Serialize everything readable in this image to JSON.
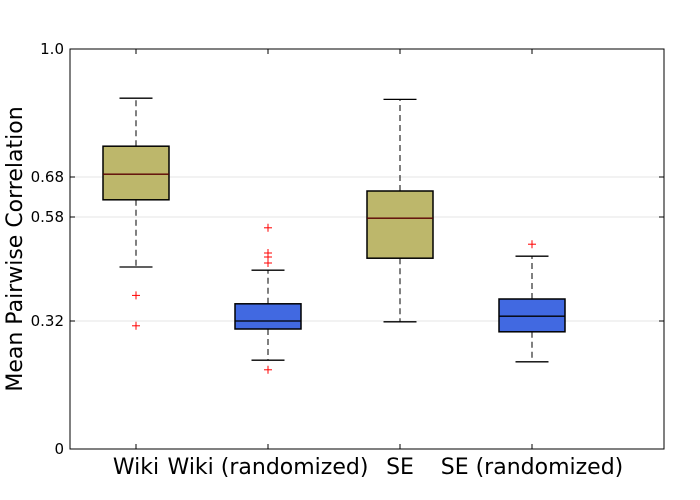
{
  "chart_data": {
    "type": "boxplot",
    "title": "",
    "xlabel": "",
    "ylabel": "Mean Pairwise Correlation",
    "ylim": [
      0,
      1.0
    ],
    "yticks": [
      0,
      0.32,
      0.58,
      0.68,
      1.0
    ],
    "ytick_labels": [
      "0",
      "0.32",
      "0.58",
      "0.68",
      "1.0"
    ],
    "grid": "horizontal at ticks",
    "categories": [
      "Wiki",
      "Wiki (randomized)",
      "SE",
      "SE (randomized)"
    ],
    "series": [
      {
        "name": "Wiki",
        "color": "#bdb76b",
        "whisker_low": 0.455,
        "q1": 0.623,
        "median": 0.687,
        "q3": 0.757,
        "whisker_high": 0.877,
        "outliers": [
          0.384,
          0.308
        ]
      },
      {
        "name": "Wiki (randomized)",
        "color": "#4169e1",
        "whisker_low": 0.222,
        "q1": 0.3,
        "median": 0.32,
        "q3": 0.363,
        "whisker_high": 0.447,
        "outliers": [
          0.553,
          0.49,
          0.48,
          0.465,
          0.198
        ]
      },
      {
        "name": "SE",
        "color": "#bdb76b",
        "whisker_low": 0.318,
        "q1": 0.477,
        "median": 0.577,
        "q3": 0.645,
        "whisker_high": 0.874,
        "outliers": []
      },
      {
        "name": "SE (randomized)",
        "color": "#4169e1",
        "whisker_low": 0.218,
        "q1": 0.293,
        "median": 0.332,
        "q3": 0.375,
        "whisker_high": 0.482,
        "outliers": [
          0.512
        ]
      }
    ]
  }
}
